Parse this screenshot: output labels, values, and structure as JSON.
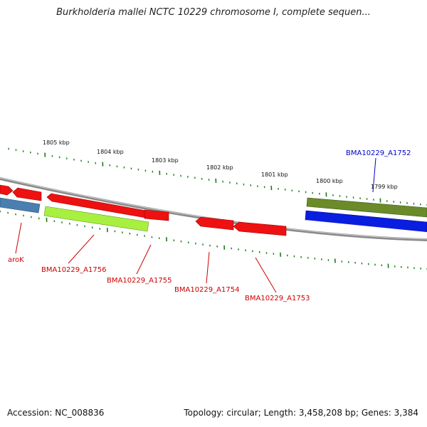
{
  "title": "Burkholderia mallei NCTC 10229 chromosome I, complete sequen...",
  "footer": {
    "accession": "Accession: NC_008836",
    "summary": "Topology: circular; Length: 3,458,208 bp; Genes: 3,384"
  },
  "scale_labels": [
    "1805 kbp",
    "1804 kbp",
    "1803 kbp",
    "1802 kbp",
    "1801 kbp",
    "1800 kbp",
    "1799 kbp"
  ],
  "gene_labels": {
    "aroK": "aroK",
    "a1756": "BMA10229_A1756",
    "a1755": "BMA10229_A1755",
    "a1754": "BMA10229_A1754",
    "a1753": "BMA10229_A1753",
    "a1752": "BMA10229_A1752"
  },
  "colors": {
    "tick": "#1a7a1a",
    "backbone": "#8a8a8a",
    "gene_red": "#ee1111",
    "gene_blue": "#0a1ee0",
    "gene_steel": "#4a7fb0",
    "gene_lime": "#a8f040",
    "gene_olive": "#6b8a2a",
    "label_red": "#cc0000",
    "label_blue": "#0000cc"
  }
}
